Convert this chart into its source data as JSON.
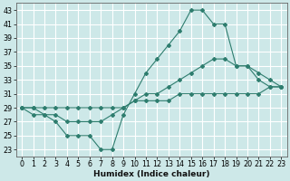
{
  "xlabel": "Humidex (Indice chaleur)",
  "bg_color": "#cde8e8",
  "grid_color": "#ffffff",
  "line_color": "#2e7d6e",
  "x_ticks": [
    0,
    1,
    2,
    3,
    4,
    5,
    6,
    7,
    8,
    9,
    10,
    11,
    12,
    13,
    14,
    15,
    16,
    17,
    18,
    19,
    20,
    21,
    22,
    23
  ],
  "y_ticks": [
    23,
    25,
    27,
    29,
    31,
    33,
    35,
    37,
    39,
    41,
    43
  ],
  "ylim": [
    22.0,
    44.0
  ],
  "xlim": [
    -0.5,
    23.5
  ],
  "line1_x": [
    0,
    1,
    2,
    3,
    4,
    5,
    6,
    7,
    8,
    9,
    10,
    11,
    12,
    13,
    14,
    15,
    16,
    17,
    18,
    19,
    20,
    21,
    22,
    23
  ],
  "line1_y": [
    29,
    28,
    28,
    27,
    25,
    25,
    25,
    23,
    23,
    28,
    31,
    34,
    36,
    38,
    40,
    43,
    43,
    41,
    41,
    35,
    35,
    33,
    32,
    32
  ],
  "line2_x": [
    0,
    1,
    2,
    3,
    4,
    5,
    6,
    7,
    8,
    9,
    10,
    11,
    12,
    13,
    14,
    15,
    16,
    17,
    18,
    19,
    20,
    21,
    22,
    23
  ],
  "line2_y": [
    29,
    29,
    28,
    28,
    27,
    27,
    27,
    27,
    28,
    29,
    30,
    31,
    31,
    32,
    33,
    34,
    35,
    36,
    36,
    35,
    35,
    34,
    33,
    32
  ],
  "line3_x": [
    0,
    1,
    2,
    3,
    4,
    5,
    6,
    7,
    8,
    9,
    10,
    11,
    12,
    13,
    14,
    15,
    16,
    17,
    18,
    19,
    20,
    21,
    22,
    23
  ],
  "line3_y": [
    29,
    29,
    29,
    29,
    29,
    29,
    29,
    29,
    29,
    29,
    30,
    30,
    30,
    30,
    31,
    31,
    31,
    31,
    31,
    31,
    31,
    31,
    32,
    32
  ]
}
